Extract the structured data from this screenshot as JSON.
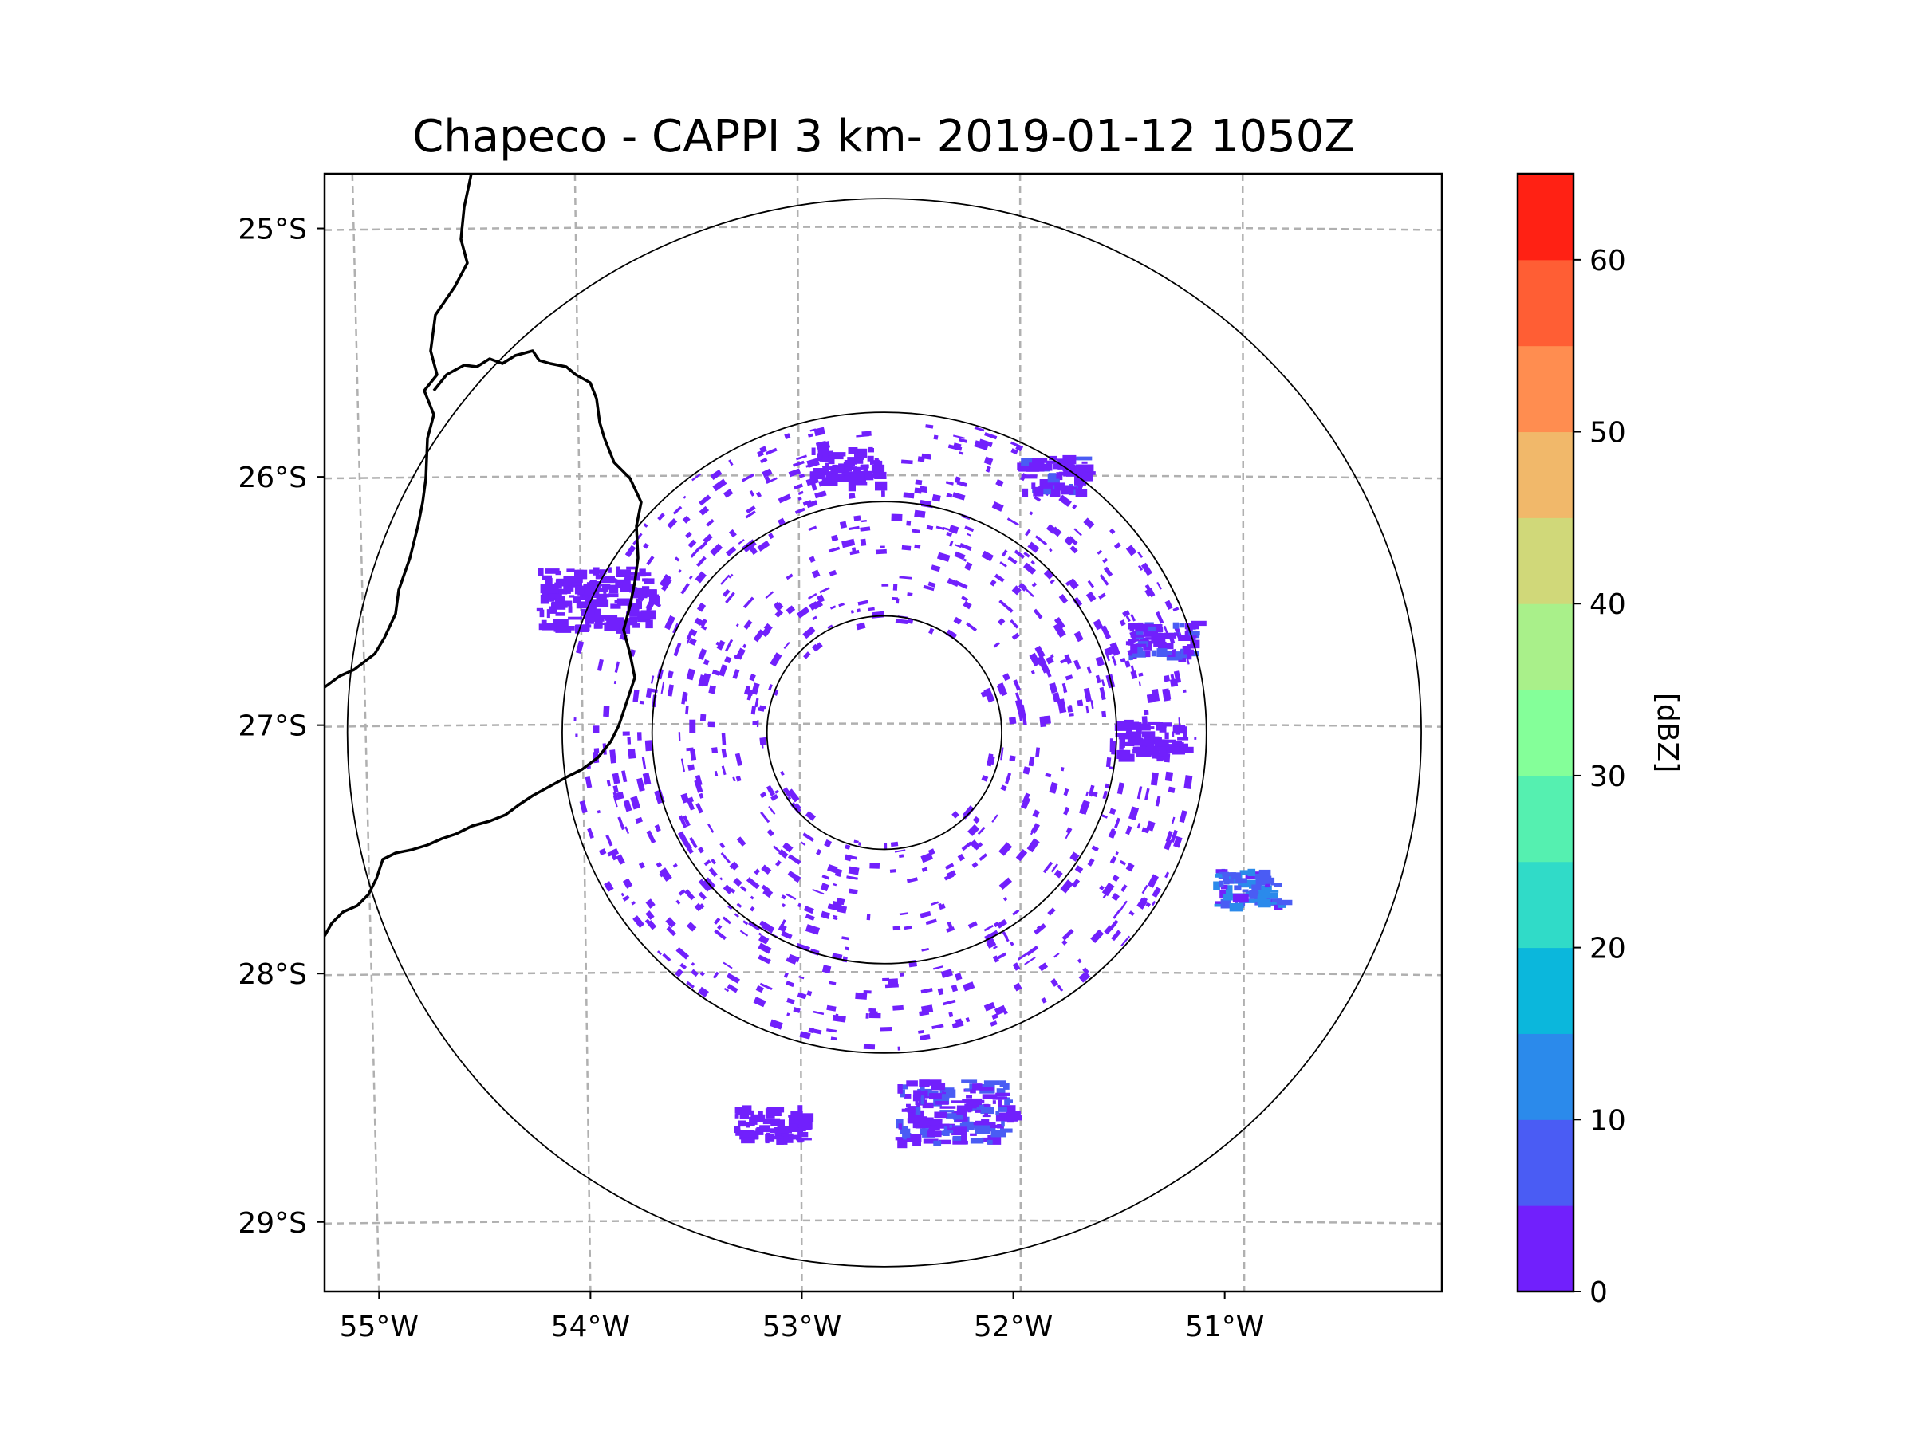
{
  "chart_data": {
    "type": "radar-map",
    "title": "Chapeco - CAPPI 3 km- 2019-01-12 1050Z",
    "lon_range": [
      -55.18,
      -50.05
    ],
    "lat_range": [
      -29.28,
      -24.78
    ],
    "x_ticks": [
      {
        "value": -55,
        "label": "55°W"
      },
      {
        "value": -54,
        "label": "54°W"
      },
      {
        "value": -53,
        "label": "53°W"
      },
      {
        "value": -52,
        "label": "52°W"
      },
      {
        "value": -51,
        "label": "51°W"
      }
    ],
    "y_ticks": [
      {
        "value": -25,
        "label": "25°S"
      },
      {
        "value": -26,
        "label": "26°S"
      },
      {
        "value": -27,
        "label": "27°S"
      },
      {
        "value": -28,
        "label": "28°S"
      },
      {
        "value": -29,
        "label": "29°S"
      }
    ],
    "grid": "dashed",
    "radar_center": {
      "lon": -52.61,
      "lat": -27.03
    },
    "range_rings_deg_lat": [
      0.47,
      0.93,
      1.29,
      2.15
    ],
    "colorbar": {
      "label": "[dBZ]",
      "range": [
        0,
        65
      ],
      "step": 5,
      "ticks": [
        0,
        10,
        20,
        30,
        40,
        50,
        60
      ],
      "colors": [
        "#7120fc",
        "#4a5cf4",
        "#2b8aeb",
        "#0bb7dc",
        "#30dbc8",
        "#55f0b0",
        "#84ff99",
        "#a9f08a",
        "#d0d879",
        "#f1b86a",
        "#ff8d50",
        "#ff5e34",
        "#ff2114"
      ]
    },
    "echo_clusters": [
      {
        "lon": -53.95,
        "lat": -26.48,
        "value": 3,
        "extent": "large"
      },
      {
        "lon": -52.3,
        "lat": -28.55,
        "value": 6,
        "extent": "large"
      },
      {
        "lon": -51.35,
        "lat": -26.65,
        "value": 5,
        "extent": "medium"
      },
      {
        "lon": -51.4,
        "lat": -27.05,
        "value": 4,
        "extent": "medium"
      },
      {
        "lon": -50.95,
        "lat": -27.65,
        "value": 12,
        "extent": "medium"
      },
      {
        "lon": -53.15,
        "lat": -28.6,
        "value": 2,
        "extent": "medium"
      },
      {
        "lon": -51.85,
        "lat": -25.98,
        "value": 5,
        "extent": "medium"
      },
      {
        "lon": -52.8,
        "lat": -25.95,
        "value": 2,
        "extent": "medium"
      }
    ]
  }
}
